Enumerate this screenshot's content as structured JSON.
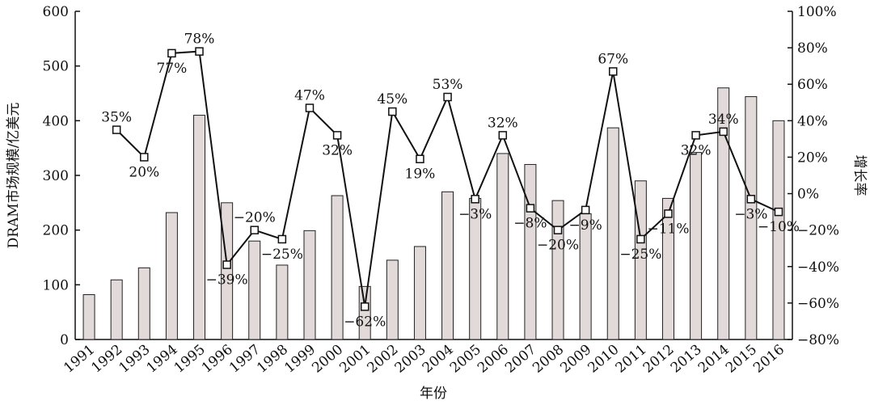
{
  "chart_data": {
    "type": "bar-line",
    "x_label": "年份",
    "y_label": "DRAM市场规模/亿美元",
    "y2_label": "增长率",
    "categories": [
      "1991",
      "1992",
      "1993",
      "1994",
      "1995",
      "1996",
      "1997",
      "1998",
      "1999",
      "2000",
      "2001",
      "2002",
      "2003",
      "2004",
      "2005",
      "2006",
      "2007",
      "2008",
      "2009",
      "2010",
      "2011",
      "2012",
      "2013",
      "2014",
      "2015",
      "2016"
    ],
    "series": [
      {
        "type": "bar",
        "color": "#e2d9d9",
        "values": [
          82,
          109,
          131,
          232,
          410,
          250,
          180,
          136,
          199,
          263,
          97,
          145,
          170,
          270,
          258,
          340,
          320,
          254,
          230,
          387,
          290,
          258,
          342,
          460,
          444,
          400
        ]
      },
      {
        "type": "line",
        "axis": "y2",
        "color": "#111111",
        "values": [
          null,
          35,
          20,
          77,
          78,
          -39,
          -20,
          -25,
          47,
          32,
          -62,
          45,
          19,
          53,
          -3,
          32,
          -8,
          -20,
          -9,
          67,
          -25,
          -11,
          32,
          34,
          -3,
          -10
        ],
        "value_labels": [
          null,
          "35%",
          "20%",
          "77%",
          "78%",
          "−39%",
          "−20%",
          "−25%",
          "47%",
          "32%",
          "−62%",
          "45%",
          "19%",
          "53%",
          "−3%",
          "32%",
          "−8%",
          "−20%",
          "−9%",
          "67%",
          "−25%",
          "−11%",
          "32%",
          "34%",
          "−3%",
          "−10%"
        ]
      }
    ],
    "ylim": [
      0,
      600
    ],
    "yticks": [
      0,
      100,
      200,
      300,
      400,
      500,
      600
    ],
    "y2lim": [
      -80,
      100
    ],
    "y2ticks": [
      {
        "value": -80,
        "label": "−80%"
      },
      {
        "value": -60,
        "label": "−60%"
      },
      {
        "value": -40,
        "label": "−40%"
      },
      {
        "value": -20,
        "label": "−20%"
      },
      {
        "value": 0,
        "label": "0%"
      },
      {
        "value": 20,
        "label": "20%"
      },
      {
        "value": 40,
        "label": "40%"
      },
      {
        "value": 60,
        "label": "60%"
      },
      {
        "value": 80,
        "label": "80%"
      },
      {
        "value": 100,
        "label": "100%"
      }
    ]
  }
}
